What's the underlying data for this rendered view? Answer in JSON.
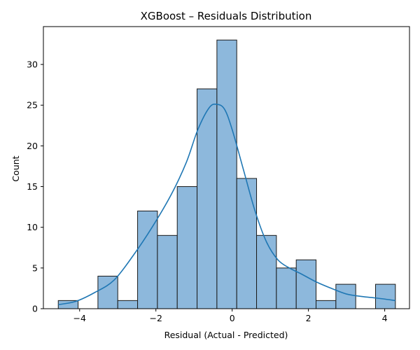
{
  "chart_data": {
    "type": "bar",
    "title": "XGBoost – Residuals Distribution",
    "xlabel": "Residual (Actual - Predicted)",
    "ylabel": "Count",
    "xlim": [
      -4.95,
      4.65
    ],
    "ylim": [
      0,
      34.65
    ],
    "xticks": [
      -4,
      -2,
      0,
      2,
      4
    ],
    "xtick_labels": [
      "−4",
      "−2",
      "0",
      "2",
      "4"
    ],
    "yticks": [
      0,
      5,
      10,
      15,
      20,
      25,
      30
    ],
    "ytick_labels": [
      "0",
      "5",
      "10",
      "15",
      "20",
      "25",
      "30"
    ],
    "bin_edges": [
      -4.56,
      -4.04,
      -3.52,
      -3.0,
      -2.48,
      -1.96,
      -1.44,
      -0.92,
      -0.4,
      0.12,
      0.64,
      1.16,
      1.68,
      2.2,
      2.72,
      3.24,
      3.76,
      4.28
    ],
    "counts": [
      1,
      0,
      4,
      1,
      12,
      9,
      15,
      27,
      33,
      16,
      9,
      5,
      6,
      1,
      3,
      0,
      3
    ],
    "kde": {
      "x": [
        -4.56,
        -4.1,
        -3.6,
        -3.1,
        -2.6,
        -2.1,
        -1.6,
        -1.2,
        -0.9,
        -0.6,
        -0.4,
        -0.2,
        0.0,
        0.3,
        0.6,
        0.9,
        1.2,
        1.5,
        1.8,
        2.2,
        2.6,
        3.0,
        3.4,
        3.8,
        4.28
      ],
      "y": [
        0.5,
        0.9,
        2.0,
        3.5,
        6.5,
        10.0,
        14.0,
        18.0,
        22.0,
        24.7,
        25.1,
        24.5,
        22.0,
        17.0,
        12.0,
        8.2,
        6.0,
        5.0,
        4.3,
        3.3,
        2.5,
        1.8,
        1.5,
        1.3,
        1.0
      ]
    },
    "grid": false,
    "colors": {
      "bar_fill": "#8db8dc",
      "bar_edge": "#1a1a1a",
      "kde_line": "#1f77b4"
    }
  }
}
